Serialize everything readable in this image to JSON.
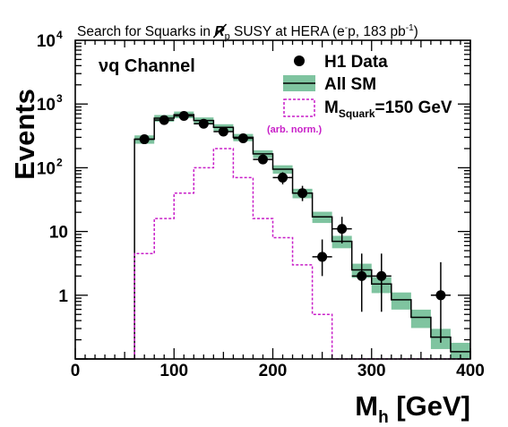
{
  "chart_data": {
    "type": "histogram",
    "title": "Search for Squarks in R̸p SUSY at HERA (e⁻p, 183 pb⁻¹)",
    "title_parts": {
      "prefix": "Search for Squarks in ",
      "rp_letter": "R",
      "rp_sub": "p",
      "middle": " SUSY at HERA (e",
      "charge_sup": "-",
      "after_charge": "p, 183 pb",
      "lumi_sup": "-1",
      "close": ")"
    },
    "annotation": "νq Channel",
    "xlabel": {
      "main": "M",
      "sub": "h",
      "unit": " [GeV]"
    },
    "ylabel": "Events",
    "xlim": [
      0,
      400
    ],
    "ylim": [
      0.1,
      10000
    ],
    "yscale": "log",
    "x_ticks": [
      {
        "value": 0,
        "label": "0"
      },
      {
        "value": 100,
        "label": "100"
      },
      {
        "value": 200,
        "label": "200"
      },
      {
        "value": 300,
        "label": "300"
      },
      {
        "value": 400,
        "label": "400"
      }
    ],
    "y_ticks": [
      {
        "value": 1,
        "label": "1"
      },
      {
        "value": 10,
        "label": "10"
      },
      {
        "value": 100,
        "label": "10",
        "exp": "2"
      },
      {
        "value": 1000,
        "label": "10",
        "exp": "3"
      },
      {
        "value": 10000,
        "label": "10",
        "exp": "4"
      }
    ],
    "legend": {
      "position": "top-right",
      "entries": [
        {
          "label": "H1 Data"
        },
        {
          "label": "All SM"
        },
        {
          "label_main": "M",
          "label_sub": "Squark",
          "label_rest": "=150 GeV",
          "note": "(arb. norm.)"
        }
      ]
    },
    "bin_edges": [
      60,
      80,
      100,
      120,
      140,
      160,
      180,
      200,
      220,
      240,
      260,
      280,
      300,
      320,
      340,
      360,
      380,
      400
    ],
    "series": [
      {
        "name": "H1 Data",
        "kind": "points",
        "x": [
          70,
          90,
          110,
          130,
          150,
          170,
          190,
          210,
          230,
          250,
          270,
          290,
          310,
          370
        ],
        "y": [
          280,
          560,
          650,
          490,
          370,
          290,
          135,
          70,
          40,
          4,
          11,
          2,
          2,
          1
        ],
        "y_low": [
          250,
          520,
          610,
          450,
          340,
          265,
          115,
          55,
          30,
          2,
          6.5,
          0.55,
          0.55,
          0.18
        ],
        "y_high": [
          315,
          600,
          690,
          530,
          400,
          315,
          155,
          85,
          52,
          7.5,
          17,
          4.5,
          4.5,
          3.3
        ],
        "x_err": 10,
        "color": "#000000"
      },
      {
        "name": "All SM",
        "kind": "step",
        "values": [
          280,
          600,
          680,
          550,
          430,
          300,
          165,
          95,
          40,
          17,
          7,
          2.5,
          1.5,
          0.85,
          0.45,
          0.22,
          0.13
        ],
        "band_rel": [
          0.15,
          0.12,
          0.12,
          0.12,
          0.12,
          0.13,
          0.14,
          0.15,
          0.17,
          0.2,
          0.22,
          0.25,
          0.28,
          0.3,
          0.32,
          0.35,
          0.38
        ],
        "color": "#000000",
        "band_color": "#7fc4a0"
      },
      {
        "name": "M_Squark=150 GeV",
        "kind": "step",
        "linestyle": "dotted",
        "values": [
          4.5,
          16,
          40,
          100,
          200,
          70,
          16,
          8,
          3,
          0.5,
          0.1,
          0.1,
          0.1,
          0.1,
          0.1,
          0.1,
          0.1
        ],
        "color": "#c81ec8"
      }
    ]
  }
}
